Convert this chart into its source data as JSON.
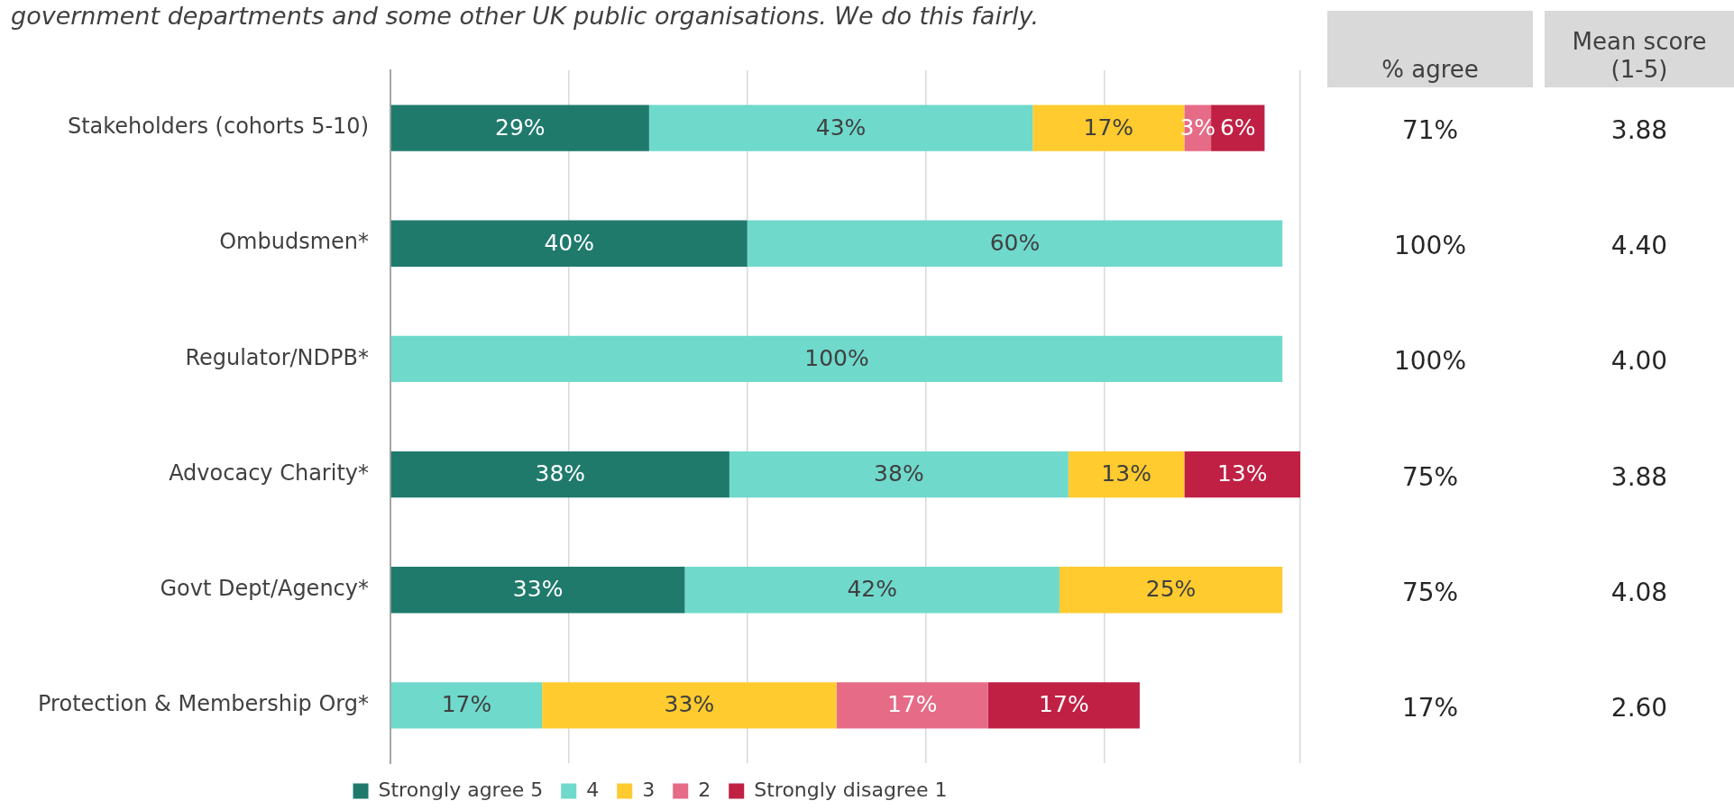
{
  "chart_data": {
    "type": "bar",
    "orientation": "horizontal",
    "stacked": true,
    "title": "government departments and some other UK public organisations. We do this fairly.",
    "categories": [
      "Stakeholders (cohorts 5-10)",
      "Ombudsmen*",
      "Regulator/NDPB*",
      "Advocacy Charity*",
      "Govt Dept/Agency*",
      "Protection & Membership Org*"
    ],
    "series": [
      {
        "name": "Strongly agree 5",
        "color": "#1f7a6c",
        "values": [
          29,
          40,
          null,
          38,
          33,
          null
        ],
        "value_labels": [
          "29%",
          "40%",
          null,
          "38%",
          "33%",
          null
        ]
      },
      {
        "name": "4",
        "color": "#6fd9cc",
        "values": [
          43,
          60,
          100,
          38,
          42,
          17
        ],
        "value_labels": [
          "43%",
          "60%",
          "100%",
          "38%",
          "42%",
          "17%"
        ]
      },
      {
        "name": "3",
        "color": "#ffcb2f",
        "values": [
          17,
          null,
          null,
          13,
          25,
          33
        ],
        "value_labels": [
          "17%",
          null,
          null,
          "13%",
          "25%",
          "33%"
        ]
      },
      {
        "name": "2",
        "color": "#e56b87",
        "values": [
          3,
          null,
          null,
          null,
          null,
          17
        ],
        "value_labels": [
          "3%",
          null,
          null,
          null,
          null,
          "17%"
        ]
      },
      {
        "name": "Strongly disagree 1",
        "color": "#c02044",
        "values": [
          6,
          null,
          null,
          13,
          null,
          17
        ],
        "value_labels": [
          "6%",
          null,
          null,
          "13%",
          null,
          "17%"
        ]
      }
    ],
    "tick_labels": "y",
    "grid": "x",
    "legend": "bottom",
    "annotations": [
      "% agree",
      "Mean score (1-5)",
      "71%",
      "3.88",
      "100%",
      "4.40",
      "100%",
      "4.00",
      "75%",
      "3.88",
      "75%",
      "4.08",
      "17%",
      "2.60"
    ]
  }
}
